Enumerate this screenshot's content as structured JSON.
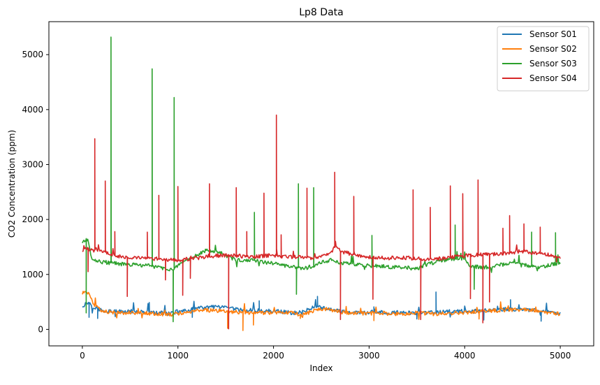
{
  "chart_data": {
    "type": "line",
    "title": "Lp8 Data",
    "xlabel": "Index",
    "ylabel": "CO2 Concentration (ppm)",
    "xlim": [
      -350,
      5350
    ],
    "ylim": [
      -300,
      5600
    ],
    "xticks": [
      0,
      1000,
      2000,
      3000,
      4000,
      5000
    ],
    "yticks": [
      0,
      1000,
      2000,
      3000,
      4000,
      5000
    ],
    "grid": false,
    "legend_position": "top-right",
    "series": [
      {
        "name": "Sensor S01",
        "color": "#1f77b4",
        "x": [
          0,
          20,
          40,
          60,
          80,
          100,
          150,
          200,
          300,
          400,
          500,
          600,
          700,
          800,
          900,
          950,
          1000,
          1100,
          1200,
          1300,
          1400,
          1500,
          1600,
          1700,
          1800,
          1900,
          2000,
          2100,
          2200,
          2300,
          2400,
          2450,
          2500,
          2600,
          2700,
          2800,
          2900,
          3000,
          3100,
          3200,
          3300,
          3400,
          3500,
          3600,
          3700,
          3800,
          3900,
          4000,
          4100,
          4200,
          4300,
          4400,
          4500,
          4600,
          4700,
          4800,
          4900,
          5000
        ],
        "y": [
          420,
          450,
          470,
          490,
          480,
          430,
          380,
          350,
          330,
          320,
          330,
          320,
          310,
          300,
          290,
          300,
          330,
          350,
          380,
          400,
          410,
          390,
          370,
          340,
          350,
          330,
          340,
          320,
          300,
          310,
          400,
          430,
          400,
          360,
          330,
          310,
          300,
          310,
          320,
          300,
          310,
          300,
          290,
          300,
          310,
          320,
          330,
          330,
          330,
          340,
          350,
          360,
          370,
          360,
          350,
          330,
          310,
          300
        ],
        "spikes": [
          [
            70,
            220
          ],
          [
            160,
            200
          ],
          [
            700,
            490
          ],
          [
            1150,
            220
          ],
          [
            1850,
            520
          ],
          [
            2460,
            600
          ],
          [
            3050,
            410
          ],
          [
            3500,
            190
          ],
          [
            3700,
            680
          ],
          [
            4200,
            170
          ],
          [
            4480,
            540
          ],
          [
            4800,
            150
          ]
        ]
      },
      {
        "name": "Sensor S02",
        "color": "#ff7f0e",
        "x": [
          0,
          20,
          40,
          60,
          80,
          100,
          150,
          200,
          300,
          400,
          500,
          600,
          700,
          800,
          900,
          1000,
          1100,
          1200,
          1300,
          1400,
          1500,
          1600,
          1700,
          1800,
          1900,
          2000,
          2100,
          2200,
          2300,
          2400,
          2500,
          2600,
          2700,
          2800,
          2900,
          3000,
          3100,
          3200,
          3300,
          3400,
          3500,
          3600,
          3700,
          3800,
          3900,
          4000,
          4100,
          4200,
          4300,
          4400,
          4500,
          4600,
          4700,
          4800,
          4900,
          5000
        ],
        "y": [
          650,
          680,
          690,
          670,
          640,
          520,
          400,
          340,
          310,
          300,
          310,
          300,
          290,
          280,
          270,
          290,
          310,
          340,
          350,
          340,
          330,
          320,
          310,
          300,
          300,
          310,
          320,
          300,
          260,
          330,
          380,
          350,
          320,
          300,
          290,
          300,
          310,
          290,
          280,
          290,
          300,
          290,
          280,
          290,
          300,
          310,
          320,
          330,
          340,
          350,
          360,
          360,
          350,
          330,
          300,
          280
        ],
        "spikes": [
          [
            950,
            220
          ],
          [
            1520,
            20
          ],
          [
            1680,
            -20
          ],
          [
            1790,
            80
          ],
          [
            2280,
            200
          ],
          [
            3050,
            160
          ],
          [
            4150,
            190
          ]
        ]
      },
      {
        "name": "Sensor S03",
        "color": "#2ca02c",
        "x": [
          0,
          20,
          40,
          60,
          80,
          100,
          150,
          200,
          300,
          400,
          500,
          600,
          700,
          800,
          900,
          950,
          1000,
          1100,
          1200,
          1300,
          1400,
          1500,
          1600,
          1700,
          1800,
          1900,
          2000,
          2100,
          2200,
          2300,
          2400,
          2500,
          2600,
          2700,
          2800,
          2900,
          3000,
          3100,
          3200,
          3300,
          3400,
          3500,
          3600,
          3700,
          3800,
          3900,
          4000,
          4050,
          4100,
          4200,
          4300,
          4400,
          4500,
          4600,
          4700,
          4800,
          4900,
          5000
        ],
        "y": [
          1580,
          1620,
          1640,
          1600,
          1450,
          1300,
          1250,
          1230,
          1210,
          1190,
          1180,
          1170,
          1160,
          1130,
          1100,
          1080,
          1150,
          1250,
          1350,
          1450,
          1420,
          1350,
          1270,
          1250,
          1260,
          1220,
          1200,
          1170,
          1130,
          1120,
          1110,
          1220,
          1260,
          1210,
          1200,
          1170,
          1160,
          1150,
          1140,
          1130,
          1120,
          1100,
          1180,
          1230,
          1260,
          1280,
          1300,
          1150,
          1140,
          1130,
          1150,
          1180,
          1200,
          1180,
          1150,
          1130,
          1180,
          1200
        ],
        "spikes": [
          [
            40,
            300
          ],
          [
            300,
            5320
          ],
          [
            730,
            4740
          ],
          [
            960,
            4220
          ],
          [
            950,
            140
          ],
          [
            1800,
            2130
          ],
          [
            2260,
            2650
          ],
          [
            2420,
            2580
          ],
          [
            2240,
            640
          ],
          [
            3030,
            1710
          ],
          [
            3900,
            1900
          ],
          [
            4100,
            730
          ],
          [
            4700,
            1770
          ],
          [
            4950,
            1760
          ]
        ]
      },
      {
        "name": "Sensor S04",
        "color": "#d62728",
        "x": [
          0,
          20,
          40,
          60,
          80,
          100,
          120,
          150,
          200,
          300,
          400,
          500,
          600,
          700,
          800,
          900,
          1000,
          1100,
          1200,
          1300,
          1400,
          1500,
          1600,
          1700,
          1800,
          1900,
          2000,
          2100,
          2200,
          2300,
          2400,
          2500,
          2600,
          2650,
          2700,
          2800,
          2900,
          3000,
          3100,
          3200,
          3300,
          3400,
          3500,
          3600,
          3700,
          3800,
          3900,
          4000,
          4100,
          4200,
          4300,
          4400,
          4500,
          4600,
          4700,
          4800,
          4900,
          5000
        ],
        "y": [
          1420,
          1460,
          1480,
          1460,
          1450,
          1450,
          1440,
          1460,
          1440,
          1360,
          1330,
          1310,
          1300,
          1290,
          1280,
          1270,
          1260,
          1280,
          1300,
          1320,
          1340,
          1350,
          1340,
          1330,
          1320,
          1340,
          1350,
          1330,
          1320,
          1310,
          1300,
          1340,
          1400,
          1530,
          1420,
          1380,
          1340,
          1320,
          1310,
          1300,
          1300,
          1300,
          1290,
          1290,
          1290,
          1300,
          1320,
          1340,
          1350,
          1360,
          1370,
          1380,
          1400,
          1420,
          1400,
          1380,
          1350,
          1300
        ],
        "spikes": [
          [
            60,
            1050
          ],
          [
            130,
            3470
          ],
          [
            240,
            2700
          ],
          [
            340,
            1780
          ],
          [
            470,
            600
          ],
          [
            680,
            1770
          ],
          [
            800,
            2440
          ],
          [
            870,
            900
          ],
          [
            1000,
            2600
          ],
          [
            1050,
            620
          ],
          [
            1130,
            930
          ],
          [
            1330,
            2650
          ],
          [
            1530,
            10
          ],
          [
            1610,
            2580
          ],
          [
            1720,
            1780
          ],
          [
            1900,
            2480
          ],
          [
            2030,
            3900
          ],
          [
            2080,
            1720
          ],
          [
            2350,
            2570
          ],
          [
            2640,
            2860
          ],
          [
            2700,
            180
          ],
          [
            2840,
            2420
          ],
          [
            3040,
            550
          ],
          [
            3460,
            2540
          ],
          [
            3540,
            180
          ],
          [
            3640,
            2220
          ],
          [
            3850,
            2610
          ],
          [
            3980,
            2470
          ],
          [
            4060,
            560
          ],
          [
            4140,
            2720
          ],
          [
            4190,
            120
          ],
          [
            4260,
            500
          ],
          [
            4400,
            1840
          ],
          [
            4470,
            2070
          ],
          [
            4620,
            1920
          ],
          [
            4790,
            1860
          ],
          [
            4960,
            1230
          ]
        ]
      }
    ]
  }
}
